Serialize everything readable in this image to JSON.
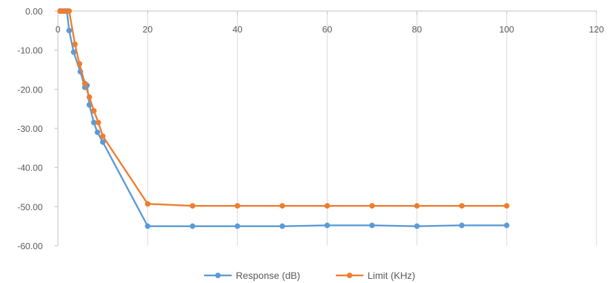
{
  "chart_data": {
    "type": "scatter",
    "title": "",
    "xlabel": "",
    "ylabel": "",
    "xlim": [
      0,
      120
    ],
    "ylim": [
      -60,
      0
    ],
    "x_ticks": [
      0,
      20,
      40,
      60,
      80,
      100,
      120
    ],
    "y_ticks": [
      0,
      -10,
      -20,
      -30,
      -40,
      -50,
      -60
    ],
    "x_tick_labels": [
      "0",
      "20",
      "40",
      "60",
      "80",
      "100",
      "120"
    ],
    "y_tick_labels": [
      "0.00",
      "-10.00",
      "-20.00",
      "-30.00",
      "-40.00",
      "-50.00",
      "-60.00"
    ],
    "grid": "vertical",
    "x_axis_at": 0,
    "legend_position": "bottom",
    "series": [
      {
        "name": "Response (dB)",
        "color": "#5b9bd5",
        "points": [
          [
            0.5,
            0
          ],
          [
            1,
            0
          ],
          [
            1.5,
            0
          ],
          [
            2,
            0
          ],
          [
            2.5,
            -5
          ],
          [
            3.5,
            -10.5
          ],
          [
            5,
            -15.5
          ],
          [
            6,
            -19.5
          ],
          [
            6.5,
            -19
          ],
          [
            7,
            -24
          ],
          [
            8,
            -28.5
          ],
          [
            8.8,
            -31
          ],
          [
            10,
            -33.5
          ],
          [
            20,
            -55
          ],
          [
            30,
            -55
          ],
          [
            40,
            -55
          ],
          [
            50,
            -55
          ],
          [
            60,
            -54.8
          ],
          [
            70,
            -54.8
          ],
          [
            80,
            -55
          ],
          [
            90,
            -54.8
          ],
          [
            100,
            -54.8
          ]
        ]
      },
      {
        "name": "Limit (KHz)",
        "color": "#ed7d31",
        "points": [
          [
            0.5,
            0
          ],
          [
            1,
            0
          ],
          [
            2,
            0
          ],
          [
            2.5,
            0
          ],
          [
            3.8,
            -8.5
          ],
          [
            4.8,
            -13.5
          ],
          [
            6,
            -18.5
          ],
          [
            7,
            -22
          ],
          [
            8,
            -25.5
          ],
          [
            9,
            -28.5
          ],
          [
            10,
            -32
          ],
          [
            20,
            -49.3
          ],
          [
            30,
            -49.8
          ],
          [
            40,
            -49.8
          ],
          [
            50,
            -49.8
          ],
          [
            60,
            -49.8
          ],
          [
            70,
            -49.8
          ],
          [
            80,
            -49.8
          ],
          [
            90,
            -49.8
          ],
          [
            100,
            -49.8
          ]
        ]
      }
    ]
  }
}
